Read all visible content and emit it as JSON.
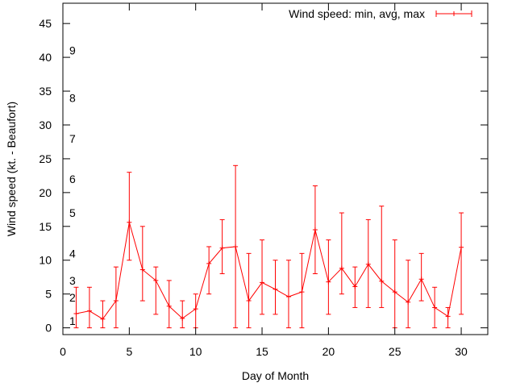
{
  "chart_data": {
    "type": "line",
    "title": "",
    "xlabel": "Day of Month",
    "ylabel": "Wind speed (kt. - Beaufort)",
    "xlim": [
      0,
      32
    ],
    "ylim": [
      -1,
      48
    ],
    "x_ticks": [
      0,
      5,
      10,
      15,
      20,
      25,
      30
    ],
    "y_ticks": [
      0,
      5,
      10,
      15,
      20,
      25,
      30,
      35,
      40,
      45
    ],
    "grid": false,
    "legend_position": "top-right",
    "color": "#ff0000",
    "series": [
      {
        "name": "Wind speed: min, avg, max",
        "x": [
          1,
          2,
          3,
          4,
          5,
          6,
          7,
          8,
          9,
          10,
          11,
          12,
          13,
          14,
          15,
          16,
          17,
          18,
          19,
          20,
          21,
          22,
          23,
          24,
          25,
          26,
          27,
          28,
          29,
          30
        ],
        "avg": [
          2.1,
          2.5,
          1.3,
          4.0,
          15.6,
          8.6,
          7.0,
          3.2,
          1.4,
          2.8,
          9.5,
          11.8,
          12.0,
          4.0,
          6.7,
          5.7,
          4.6,
          5.3,
          14.5,
          6.8,
          8.8,
          6.1,
          9.4,
          6.9,
          5.3,
          3.8,
          7.2,
          3.0,
          1.7,
          11.9
        ],
        "min": [
          0,
          0,
          0,
          0,
          10,
          4,
          2,
          0,
          0,
          0,
          5,
          8,
          0,
          0,
          2,
          2,
          0,
          0,
          8,
          2,
          5,
          3,
          3,
          3,
          0,
          0,
          4,
          0,
          0,
          2
        ],
        "max": [
          6,
          6,
          4,
          9,
          23,
          15,
          9,
          7,
          4,
          5,
          12,
          16,
          24,
          11,
          13,
          10,
          10,
          11,
          21,
          13,
          17,
          9,
          16,
          18,
          13,
          10,
          11,
          6,
          3,
          17
        ]
      }
    ],
    "annotations": [
      {
        "text": "1",
        "y": 1
      },
      {
        "text": "2",
        "y": 4.5
      },
      {
        "text": "3",
        "y": 7
      },
      {
        "text": "4",
        "y": 11
      },
      {
        "text": "5",
        "y": 17
      },
      {
        "text": "6",
        "y": 22
      },
      {
        "text": "7",
        "y": 28
      },
      {
        "text": "8",
        "y": 34
      },
      {
        "text": "9",
        "y": 41
      }
    ]
  }
}
